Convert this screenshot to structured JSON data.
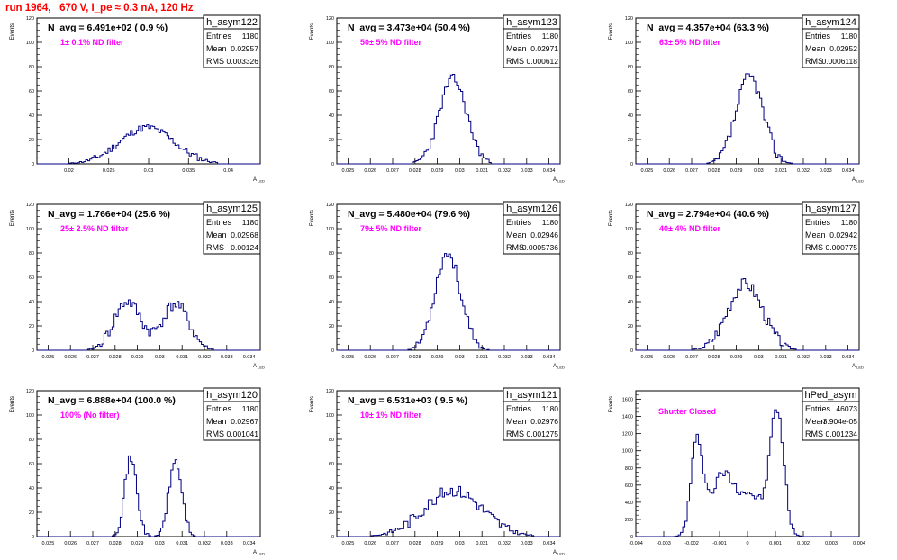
{
  "page_title": "run 1964,   670 V, I_pe ≈ 0.3 nA, 120 Hz",
  "stats_labels": {
    "entries": "Entries",
    "mean": "Mean",
    "rms": "RMS"
  },
  "colors": {
    "title": "#ff0000",
    "note": "#ff00ff",
    "histogram": "#000080",
    "axis": "#000000"
  },
  "chart_data": [
    {
      "type": "bar",
      "name": "h_asym122",
      "ylabel": "Events",
      "xlabel": "A_LED",
      "navg": "N_avg = 6.491e+02 ( 0.9 %)",
      "note": "1± 0.1% ND filter",
      "entries": "1180",
      "mean": "0.02957",
      "rms": "0.003326",
      "xlim": [
        0.016,
        0.044
      ],
      "ylim": [
        0,
        120
      ],
      "xticks": [
        "0.02",
        "0.025",
        "0.03",
        "0.035",
        "0.04"
      ],
      "yticks": [
        "0",
        "20",
        "40",
        "60",
        "80",
        "100",
        "120"
      ],
      "peaks": [
        {
          "mu": 0.0298,
          "sigma": 0.0034,
          "amp": 30
        }
      ],
      "noise": 3,
      "seed": 11,
      "bins": 110
    },
    {
      "type": "bar",
      "name": "h_asym123",
      "ylabel": "Events",
      "xlabel": "A_LED",
      "navg": "N_avg = 3.473e+04 (50.4 %)",
      "note": "50± 5% ND filter",
      "entries": "1180",
      "mean": "0.02971",
      "rms": "0.000612",
      "xlim": [
        0.0245,
        0.0345
      ],
      "ylim": [
        0,
        120
      ],
      "xticks": [
        "0.025",
        "0.026",
        "0.027",
        "0.028",
        "0.029",
        "0.03",
        "0.031",
        "0.032",
        "0.033",
        "0.034"
      ],
      "yticks": [
        "0",
        "20",
        "40",
        "60",
        "80",
        "100",
        "120"
      ],
      "peaks": [
        {
          "mu": 0.0297,
          "sigma": 0.00061,
          "amp": 70
        }
      ],
      "noise": 4,
      "seed": 23,
      "bins": 110
    },
    {
      "type": "bar",
      "name": "h_asym124",
      "ylabel": "Events",
      "xlabel": "A_LED",
      "navg": "N_avg = 4.357e+04 (63.3 %)",
      "note": "63± 5% ND filter",
      "entries": "1180",
      "mean": "0.02952",
      "rms": "0.0006118",
      "xlim": [
        0.0245,
        0.0345
      ],
      "ylim": [
        0,
        120
      ],
      "xticks": [
        "0.025",
        "0.026",
        "0.027",
        "0.028",
        "0.029",
        "0.03",
        "0.031",
        "0.032",
        "0.033",
        "0.034"
      ],
      "yticks": [
        "0",
        "20",
        "40",
        "60",
        "80",
        "100",
        "120"
      ],
      "peaks": [
        {
          "mu": 0.0296,
          "sigma": 0.0006,
          "amp": 72
        }
      ],
      "noise": 5,
      "seed": 37,
      "bins": 110
    },
    {
      "type": "bar",
      "name": "h_asym125",
      "ylabel": "Events",
      "xlabel": "A_LED",
      "navg": "N_avg = 1.766e+04 (25.6 %)",
      "note": "25± 2.5% ND filter",
      "entries": "1180",
      "mean": "0.02968",
      "rms": "0.00124",
      "xlim": [
        0.0245,
        0.0345
      ],
      "ylim": [
        0,
        120
      ],
      "xticks": [
        "0.025",
        "0.026",
        "0.027",
        "0.028",
        "0.029",
        "0.03",
        "0.031",
        "0.032",
        "0.033",
        "0.034"
      ],
      "yticks": [
        "0",
        "20",
        "40",
        "60",
        "80",
        "100",
        "120"
      ],
      "peaks": [
        {
          "mu": 0.02855,
          "sigma": 0.0006,
          "amp": 40
        },
        {
          "mu": 0.0307,
          "sigma": 0.0006,
          "amp": 38
        }
      ],
      "noise": 5,
      "seed": 41,
      "bins": 110
    },
    {
      "type": "bar",
      "name": "h_asym126",
      "ylabel": "Events",
      "xlabel": "A_LED",
      "navg": "N_avg = 5.480e+04 (79.6 %)",
      "note": "79± 5% ND filter",
      "entries": "1180",
      "mean": "0.02946",
      "rms": "0.0005736",
      "xlim": [
        0.0245,
        0.0345
      ],
      "ylim": [
        0,
        120
      ],
      "xticks": [
        "0.025",
        "0.026",
        "0.027",
        "0.028",
        "0.029",
        "0.03",
        "0.031",
        "0.032",
        "0.033",
        "0.034"
      ],
      "yticks": [
        "0",
        "20",
        "40",
        "60",
        "80",
        "100",
        "120"
      ],
      "peaks": [
        {
          "mu": 0.02946,
          "sigma": 0.00057,
          "amp": 80
        }
      ],
      "noise": 5,
      "seed": 53,
      "bins": 110
    },
    {
      "type": "bar",
      "name": "h_asym127",
      "ylabel": "Events",
      "xlabel": "A_LED",
      "navg": "N_avg = 2.794e+04 (40.6 %)",
      "note": "40± 4% ND filter",
      "entries": "1180",
      "mean": "0.02942",
      "rms": "0.000775",
      "xlim": [
        0.0245,
        0.0345
      ],
      "ylim": [
        0,
        120
      ],
      "xticks": [
        "0.025",
        "0.026",
        "0.027",
        "0.028",
        "0.029",
        "0.03",
        "0.031",
        "0.032",
        "0.033",
        "0.034"
      ],
      "yticks": [
        "0",
        "20",
        "40",
        "60",
        "80",
        "100",
        "120"
      ],
      "peaks": [
        {
          "mu": 0.0294,
          "sigma": 0.00078,
          "amp": 55
        }
      ],
      "noise": 5,
      "seed": 67,
      "bins": 110
    },
    {
      "type": "bar",
      "name": "h_asym120",
      "ylabel": "Events",
      "xlabel": "A_LED",
      "navg": "N_avg = 6.888e+04 (100.0 %)",
      "note": "100% (No filter)",
      "entries": "1180",
      "mean": "0.02967",
      "rms": "0.001041",
      "xlim": [
        0.0245,
        0.0345
      ],
      "ylim": [
        0,
        120
      ],
      "xticks": [
        "0.025",
        "0.026",
        "0.027",
        "0.028",
        "0.029",
        "0.03",
        "0.031",
        "0.032",
        "0.033",
        "0.034"
      ],
      "yticks": [
        "0",
        "20",
        "40",
        "60",
        "80",
        "100",
        "120"
      ],
      "peaks": [
        {
          "mu": 0.0287,
          "sigma": 0.00028,
          "amp": 64
        },
        {
          "mu": 0.0307,
          "sigma": 0.00029,
          "amp": 62
        }
      ],
      "noise": 4,
      "seed": 71,
      "bins": 110
    },
    {
      "type": "bar",
      "name": "h_asym121",
      "ylabel": "Events",
      "xlabel": "A_LED",
      "navg": "N_avg = 6.531e+03 ( 9.5 %)",
      "note": "10± 1% ND filter",
      "entries": "1180",
      "mean": "0.02976",
      "rms": "0.001275",
      "xlim": [
        0.0245,
        0.0345
      ],
      "ylim": [
        0,
        120
      ],
      "xticks": [
        "0.025",
        "0.026",
        "0.027",
        "0.028",
        "0.029",
        "0.03",
        "0.031",
        "0.032",
        "0.033",
        "0.034"
      ],
      "yticks": [
        "0",
        "20",
        "40",
        "60",
        "80",
        "100",
        "120"
      ],
      "peaks": [
        {
          "mu": 0.0297,
          "sigma": 0.0013,
          "amp": 38
        }
      ],
      "noise": 5,
      "seed": 83,
      "bins": 110
    },
    {
      "type": "bar",
      "name": "hPed_asym",
      "ylabel": "Events",
      "xlabel": "",
      "navg": "",
      "note": "Shutter Closed",
      "entries": "46073",
      "mean": "-3.904e-05",
      "rms": "0.001234",
      "xlim": [
        -0.004,
        0.004
      ],
      "ylim": [
        0,
        1700
      ],
      "xticks": [
        "-0.004",
        "-0.003",
        "-0.002",
        "-0.001",
        "0",
        "0.001",
        "0.002",
        "0.003",
        "0.004"
      ],
      "yticks": [
        "0",
        "200",
        "400",
        "600",
        "800",
        "1000",
        "1200",
        "1400",
        "1600"
      ],
      "peaks": [
        {
          "mu": -0.0018,
          "sigma": 0.00022,
          "amp": 1100
        },
        {
          "mu": -0.0009,
          "sigma": 0.0004,
          "amp": 700
        },
        {
          "mu": 0.0001,
          "sigma": 0.00045,
          "amp": 480
        },
        {
          "mu": 0.00105,
          "sigma": 0.00025,
          "amp": 1450
        }
      ],
      "noise": 60,
      "seed": 97,
      "bins": 100
    }
  ]
}
